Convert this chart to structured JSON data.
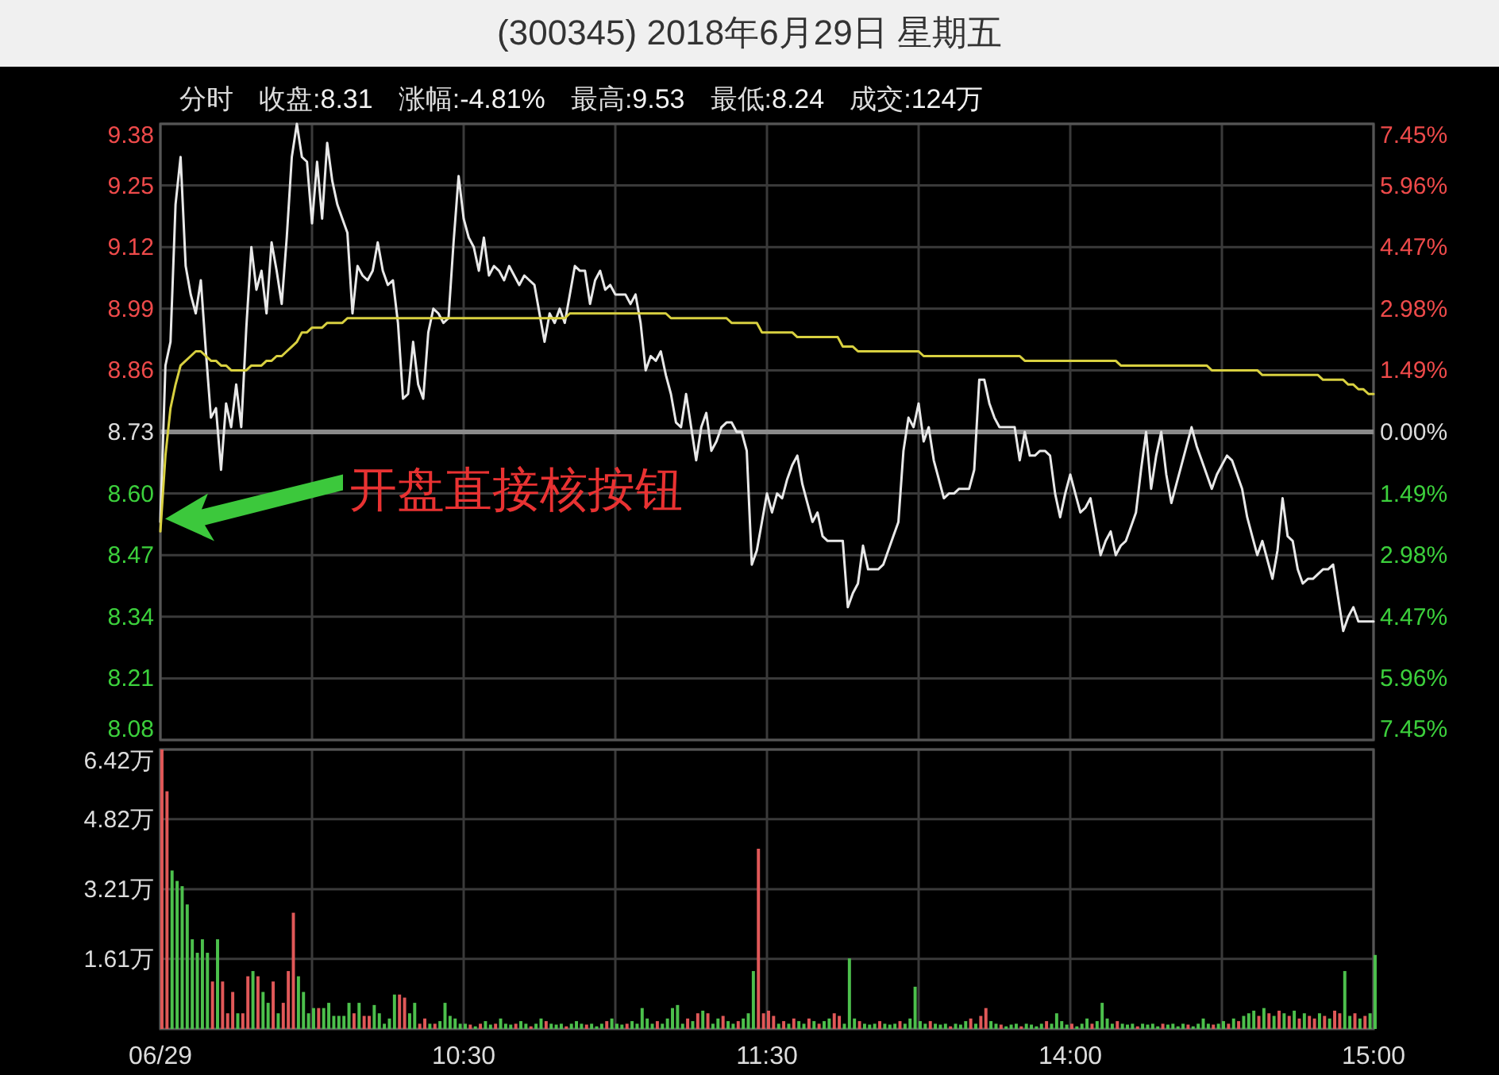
{
  "chart_data": [
    {
      "type": "line",
      "title": "(300345) 2018年6月29日 星期五",
      "annotations": [
        "分时",
        "收盘:8.31",
        "涨幅:-4.81%",
        "最高:9.53",
        "最低:8.24",
        "成交:124万",
        "开盘直接核按钮"
      ],
      "series": [
        {
          "color": "#e8e8e8",
          "values": [
            8.54,
            8.87,
            8.92,
            9.21,
            9.31,
            9.08,
            9.02,
            8.98,
            9.05,
            8.9,
            8.76,
            8.78,
            8.65,
            8.79,
            8.74,
            8.83,
            8.74,
            8.95,
            9.12,
            9.03,
            9.07,
            8.98,
            9.13,
            9.07,
            9.0,
            9.14,
            9.31,
            9.38,
            9.31,
            9.3,
            9.17,
            9.3,
            9.18,
            9.34,
            9.26,
            9.21,
            9.18,
            9.15,
            8.98,
            9.08,
            9.06,
            9.05,
            9.07,
            9.13,
            9.07,
            9.04,
            9.05,
            8.96,
            8.8,
            8.81,
            8.92,
            8.83,
            8.8,
            8.94,
            8.99,
            8.98,
            8.96,
            8.97,
            9.13,
            9.27,
            9.18,
            9.14,
            9.12,
            9.07,
            9.14,
            9.06,
            9.08,
            9.07,
            9.05,
            9.08,
            9.06,
            9.04,
            9.06,
            9.05,
            9.04,
            8.98,
            8.92,
            8.98,
            8.96,
            8.99,
            8.96,
            9.02,
            9.08,
            9.07,
            9.07,
            9.0,
            9.05,
            9.07,
            9.03,
            9.04,
            9.02,
            9.02,
            9.02,
            9.0,
            9.02,
            8.96,
            8.86,
            8.89,
            8.88,
            8.9,
            8.85,
            8.81,
            8.75,
            8.74,
            8.81,
            8.74,
            8.67,
            8.74,
            8.77,
            8.69,
            8.71,
            8.74,
            8.75,
            8.75,
            8.73,
            8.73,
            8.69,
            8.45,
            8.48,
            8.54,
            8.6,
            8.56,
            8.6,
            8.59,
            8.63,
            8.66,
            8.68,
            8.62,
            8.58,
            8.54,
            8.56,
            8.51,
            8.5,
            8.5,
            8.5,
            8.5,
            8.36,
            8.39,
            8.41,
            8.49,
            8.44,
            8.44,
            8.44,
            8.45,
            8.48,
            8.51,
            8.54,
            8.69,
            8.76,
            8.74,
            8.79,
            8.71,
            8.74,
            8.67,
            8.63,
            8.59,
            8.6,
            8.6,
            8.61,
            8.61,
            8.61,
            8.65,
            8.84,
            8.84,
            8.79,
            8.76,
            8.74,
            8.74,
            8.74,
            8.74,
            8.67,
            8.73,
            8.68,
            8.68,
            8.69,
            8.69,
            8.68,
            8.6,
            8.55,
            8.6,
            8.64,
            8.6,
            8.56,
            8.57,
            8.59,
            8.53,
            8.47,
            8.5,
            8.52,
            8.47,
            8.49,
            8.5,
            8.53,
            8.56,
            8.65,
            8.73,
            8.61,
            8.68,
            8.73,
            8.64,
            8.58,
            8.62,
            8.66,
            8.7,
            8.74,
            8.7,
            8.67,
            8.64,
            8.61,
            8.64,
            8.66,
            8.68,
            8.67,
            8.64,
            8.61,
            8.55,
            8.51,
            8.47,
            8.5,
            8.46,
            8.42,
            8.48,
            8.59,
            8.51,
            8.5,
            8.44,
            8.41,
            8.42,
            8.42,
            8.43,
            8.44,
            8.44,
            8.45,
            8.38,
            8.31,
            8.34,
            8.36,
            8.33,
            8.33,
            8.33,
            8.33
          ]
        },
        {
          "color": "#d8d040",
          "values": [
            8.52,
            8.68,
            8.78,
            8.83,
            8.87,
            8.88,
            8.89,
            8.9,
            8.9,
            8.89,
            8.88,
            8.88,
            8.87,
            8.87,
            8.86,
            8.86,
            8.86,
            8.86,
            8.87,
            8.87,
            8.87,
            8.88,
            8.88,
            8.89,
            8.89,
            8.9,
            8.91,
            8.92,
            8.94,
            8.94,
            8.95,
            8.95,
            8.95,
            8.96,
            8.96,
            8.96,
            8.96,
            8.97,
            8.97,
            8.97,
            8.97,
            8.97,
            8.97,
            8.97,
            8.97,
            8.97,
            8.97,
            8.97,
            8.97,
            8.97,
            8.97,
            8.97,
            8.97,
            8.97,
            8.97,
            8.97,
            8.97,
            8.97,
            8.97,
            8.97,
            8.97,
            8.97,
            8.97,
            8.97,
            8.97,
            8.97,
            8.97,
            8.97,
            8.97,
            8.97,
            8.97,
            8.97,
            8.97,
            8.97,
            8.97,
            8.97,
            8.97,
            8.97,
            8.97,
            8.97,
            8.97,
            8.98,
            8.98,
            8.98,
            8.98,
            8.98,
            8.98,
            8.98,
            8.98,
            8.98,
            8.98,
            8.98,
            8.98,
            8.98,
            8.98,
            8.98,
            8.98,
            8.98,
            8.98,
            8.98,
            8.98,
            8.97,
            8.97,
            8.97,
            8.97,
            8.97,
            8.97,
            8.97,
            8.97,
            8.97,
            8.97,
            8.97,
            8.97,
            8.96,
            8.96,
            8.96,
            8.96,
            8.96,
            8.96,
            8.94,
            8.94,
            8.94,
            8.94,
            8.94,
            8.94,
            8.94,
            8.93,
            8.93,
            8.93,
            8.93,
            8.93,
            8.93,
            8.93,
            8.93,
            8.93,
            8.91,
            8.91,
            8.91,
            8.9,
            8.9,
            8.9,
            8.9,
            8.9,
            8.9,
            8.9,
            8.9,
            8.9,
            8.9,
            8.9,
            8.9,
            8.9,
            8.89,
            8.89,
            8.89,
            8.89,
            8.89,
            8.89,
            8.89,
            8.89,
            8.89,
            8.89,
            8.89,
            8.89,
            8.89,
            8.89,
            8.89,
            8.89,
            8.89,
            8.89,
            8.89,
            8.89,
            8.88,
            8.88,
            8.88,
            8.88,
            8.88,
            8.88,
            8.88,
            8.88,
            8.88,
            8.88,
            8.88,
            8.88,
            8.88,
            8.88,
            8.88,
            8.88,
            8.88,
            8.88,
            8.88,
            8.87,
            8.87,
            8.87,
            8.87,
            8.87,
            8.87,
            8.87,
            8.87,
            8.87,
            8.87,
            8.87,
            8.87,
            8.87,
            8.87,
            8.87,
            8.87,
            8.87,
            8.87,
            8.86,
            8.86,
            8.86,
            8.86,
            8.86,
            8.86,
            8.86,
            8.86,
            8.86,
            8.86,
            8.85,
            8.85,
            8.85,
            8.85,
            8.85,
            8.85,
            8.85,
            8.85,
            8.85,
            8.85,
            8.85,
            8.85,
            8.84,
            8.84,
            8.84,
            8.84,
            8.84,
            8.83,
            8.83,
            8.82,
            8.82,
            8.81,
            8.81
          ]
        }
      ],
      "ylim": [
        8.08,
        9.38
      ],
      "yticks": [
        {
          "value": 9.38,
          "label": "9.38"
        },
        {
          "value": 9.25,
          "label": "9.25"
        },
        {
          "value": 9.12,
          "label": "9.12"
        },
        {
          "value": 8.99,
          "label": "8.99"
        },
        {
          "value": 8.86,
          "label": "8.86"
        },
        {
          "value": 8.73,
          "label": "8.73"
        },
        {
          "value": 8.6,
          "label": "8.60"
        },
        {
          "value": 8.47,
          "label": "8.47"
        },
        {
          "value": 8.34,
          "label": "8.34"
        },
        {
          "value": 8.21,
          "label": "8.21"
        },
        {
          "value": 8.08,
          "label": "8.08"
        }
      ],
      "y2lim": [
        -7.45,
        7.45
      ],
      "y2ticks": [
        {
          "value": 7.45,
          "label": "7.45%"
        },
        {
          "value": 5.96,
          "label": "5.96%"
        },
        {
          "value": 4.47,
          "label": "4.47%"
        },
        {
          "value": 2.98,
          "label": "2.98%"
        },
        {
          "value": 1.49,
          "label": "1.49%"
        },
        {
          "value": 0,
          "label": "0.00%"
        },
        {
          "value": -1.49,
          "label": "1.49%"
        },
        {
          "value": -2.98,
          "label": "2.98%"
        },
        {
          "value": -4.47,
          "label": "4.47%"
        },
        {
          "value": -5.96,
          "label": "5.96%"
        },
        {
          "value": -7.45,
          "label": "7.45%"
        }
      ],
      "ref_lines": [
        {
          "axis": "y",
          "value": 8.73,
          "color": "#8a8a8a"
        }
      ],
      "grid": true,
      "tick_labels": "y"
    },
    {
      "type": "bar",
      "categories": [
        "06/29",
        null,
        null,
        null,
        null,
        null,
        null,
        null,
        null,
        null,
        null,
        null,
        null,
        null,
        null,
        null,
        null,
        null,
        null,
        null,
        null,
        null,
        null,
        null,
        null,
        null,
        null,
        null,
        null,
        null,
        null,
        null,
        null,
        null,
        null,
        null,
        null,
        null,
        null,
        null,
        null,
        null,
        null,
        null,
        null,
        null,
        null,
        null,
        null,
        null,
        null,
        null,
        null,
        null,
        null,
        null,
        null,
        null,
        null,
        null,
        "10:30",
        null,
        null,
        null,
        null,
        null,
        null,
        null,
        null,
        null,
        null,
        null,
        null,
        null,
        null,
        null,
        null,
        null,
        null,
        null,
        null,
        null,
        null,
        null,
        null,
        null,
        null,
        null,
        null,
        null,
        null,
        null,
        null,
        null,
        null,
        null,
        null,
        null,
        null,
        null,
        null,
        null,
        null,
        null,
        null,
        null,
        null,
        null,
        null,
        null,
        null,
        null,
        null,
        null,
        null,
        null,
        null,
        null,
        null,
        null,
        "11:30",
        null,
        null,
        null,
        null,
        null,
        null,
        null,
        null,
        null,
        null,
        null,
        null,
        null,
        null,
        null,
        null,
        null,
        null,
        null,
        null,
        null,
        null,
        null,
        null,
        null,
        null,
        null,
        null,
        null,
        null,
        null,
        null,
        null,
        null,
        null,
        null,
        null,
        null,
        null,
        null,
        null,
        null,
        null,
        null,
        null,
        null,
        null,
        null,
        null,
        null,
        null,
        null,
        null,
        null,
        null,
        null,
        null,
        null,
        null,
        "14:00",
        null,
        null,
        null,
        null,
        null,
        null,
        null,
        null,
        null,
        null,
        null,
        null,
        null,
        null,
        null,
        null,
        null,
        null,
        null,
        null,
        null,
        null,
        null,
        null,
        null,
        null,
        null,
        null,
        null,
        null,
        null,
        null,
        null,
        null,
        null,
        null,
        null,
        null,
        null,
        null,
        null,
        null,
        null,
        null,
        null,
        null,
        null,
        null,
        null,
        null,
        null,
        null,
        null,
        null,
        null,
        null,
        null,
        null,
        null,
        "15:00"
      ],
      "values": [
        6.42,
        5.46,
        3.64,
        3.4,
        3.28,
        2.86,
        2.06,
        1.75,
        2.06,
        1.75,
        1.09,
        2.06,
        1.09,
        0.36,
        0.85,
        0.36,
        0.36,
        1.21,
        1.33,
        1.21,
        0.85,
        0.6,
        1.09,
        0.36,
        0.6,
        1.33,
        2.67,
        1.21,
        0.85,
        0.36,
        0.48,
        0.48,
        0.48,
        0.6,
        0.3,
        0.3,
        0.3,
        0.6,
        0.36,
        0.6,
        0.3,
        0.3,
        0.55,
        0.36,
        0.12,
        0.24,
        0.79,
        0.79,
        0.72,
        0.36,
        0.6,
        0.12,
        0.24,
        0.12,
        0.12,
        0.18,
        0.6,
        0.3,
        0.24,
        0.12,
        0.12,
        0.1,
        0.06,
        0.12,
        0.18,
        0.1,
        0.12,
        0.24,
        0.12,
        0.1,
        0.12,
        0.18,
        0.12,
        0.06,
        0.12,
        0.24,
        0.18,
        0.12,
        0.1,
        0.12,
        0.06,
        0.12,
        0.18,
        0.12,
        0.1,
        0.12,
        0.06,
        0.12,
        0.18,
        0.24,
        0.12,
        0.1,
        0.12,
        0.18,
        0.12,
        0.48,
        0.24,
        0.12,
        0.18,
        0.12,
        0.24,
        0.48,
        0.55,
        0.12,
        0.24,
        0.18,
        0.36,
        0.42,
        0.36,
        0.12,
        0.24,
        0.3,
        0.18,
        0.12,
        0.18,
        0.24,
        0.36,
        1.33,
        4.14,
        0.36,
        0.42,
        0.3,
        0.12,
        0.18,
        0.12,
        0.24,
        0.18,
        0.12,
        0.24,
        0.18,
        0.12,
        0.18,
        0.24,
        0.36,
        0.3,
        0.12,
        1.62,
        0.24,
        0.18,
        0.12,
        0.1,
        0.12,
        0.18,
        0.12,
        0.1,
        0.12,
        0.18,
        0.12,
        0.24,
        0.97,
        0.18,
        0.12,
        0.18,
        0.12,
        0.1,
        0.12,
        0.06,
        0.12,
        0.1,
        0.18,
        0.24,
        0.12,
        0.3,
        0.48,
        0.18,
        0.12,
        0.1,
        0.06,
        0.1,
        0.12,
        0.06,
        0.12,
        0.1,
        0.06,
        0.12,
        0.18,
        0.12,
        0.36,
        0.18,
        0.1,
        0.12,
        0.06,
        0.12,
        0.24,
        0.12,
        0.18,
        0.6,
        0.24,
        0.12,
        0.18,
        0.12,
        0.1,
        0.12,
        0.06,
        0.12,
        0.1,
        0.12,
        0.06,
        0.12,
        0.1,
        0.12,
        0.06,
        0.12,
        0.1,
        0.06,
        0.12,
        0.24,
        0.12,
        0.1,
        0.12,
        0.18,
        0.12,
        0.24,
        0.18,
        0.3,
        0.36,
        0.42,
        0.3,
        0.48,
        0.36,
        0.3,
        0.42,
        0.36,
        0.3,
        0.42,
        0.24,
        0.36,
        0.3,
        0.24,
        0.36,
        0.3,
        0.24,
        0.42,
        0.36,
        1.33,
        0.3,
        0.36,
        0.24,
        0.3,
        0.36,
        1.7
      ],
      "colors": [
        "#e05858",
        "#e05858",
        "#4cc04c",
        "#4cc04c",
        "#4cc04c",
        "#4cc04c",
        "#4cc04c",
        "#4cc04c",
        "#4cc04c",
        "#4cc04c",
        "#e05858",
        "#4cc04c",
        "#e05858",
        "#e05858",
        "#e05858",
        "#4cc04c",
        "#e05858",
        "#e05858",
        "#4cc04c",
        "#e05858",
        "#4cc04c",
        "#4cc04c",
        "#e05858",
        "#4cc04c",
        "#e05858",
        "#e05858",
        "#e05858",
        "#4cc04c",
        "#4cc04c",
        "#4cc04c",
        "#4cc04c",
        "#e05858",
        "#4cc04c",
        "#4cc04c",
        "#4cc04c",
        "#4cc04c",
        "#4cc04c",
        "#4cc04c",
        "#e05858",
        "#4cc04c",
        "#e05858",
        "#e05858",
        "#4cc04c",
        "#4cc04c",
        "#4cc04c",
        "#4cc04c",
        "#4cc04c",
        "#e05858",
        "#e05858",
        "#4cc04c",
        "#4cc04c",
        "#e05858",
        "#e05858",
        "#4cc04c",
        "#e05858",
        "#4cc04c",
        "#4cc04c",
        "#4cc04c",
        "#4cc04c",
        "#4cc04c",
        "#4cc04c",
        "#e05858",
        "#4cc04c",
        "#e05858",
        "#4cc04c",
        "#4cc04c",
        "#e05858",
        "#4cc04c",
        "#4cc04c",
        "#4cc04c",
        "#e05858",
        "#4cc04c",
        "#4cc04c",
        "#e05858",
        "#4cc04c",
        "#4cc04c",
        "#e05858",
        "#4cc04c",
        "#4cc04c",
        "#4cc04c",
        "#e05858",
        "#4cc04c",
        "#4cc04c",
        "#4cc04c",
        "#e05858",
        "#4cc04c",
        "#4cc04c",
        "#4cc04c",
        "#e05858",
        "#4cc04c",
        "#4cc04c",
        "#4cc04c",
        "#e05858",
        "#4cc04c",
        "#4cc04c",
        "#4cc04c",
        "#4cc04c",
        "#4cc04c",
        "#e05858",
        "#4cc04c",
        "#4cc04c",
        "#4cc04c",
        "#4cc04c",
        "#4cc04c",
        "#e05858",
        "#4cc04c",
        "#e05858",
        "#4cc04c",
        "#e05858",
        "#4cc04c",
        "#4cc04c",
        "#e05858",
        "#4cc04c",
        "#4cc04c",
        "#e05858",
        "#4cc04c",
        "#4cc04c",
        "#4cc04c",
        "#e05858",
        "#e05858",
        "#e05858",
        "#e05858",
        "#4cc04c",
        "#e05858",
        "#4cc04c",
        "#e05858",
        "#4cc04c",
        "#4cc04c",
        "#e05858",
        "#4cc04c",
        "#e05858",
        "#4cc04c",
        "#4cc04c",
        "#e05858",
        "#e05858",
        "#4cc04c",
        "#4cc04c",
        "#4cc04c",
        "#e05858",
        "#4cc04c",
        "#4cc04c",
        "#4cc04c",
        "#e05858",
        "#4cc04c",
        "#4cc04c",
        "#4cc04c",
        "#e05858",
        "#4cc04c",
        "#4cc04c",
        "#4cc04c",
        "#4cc04c",
        "#4cc04c",
        "#e05858",
        "#4cc04c",
        "#4cc04c",
        "#4cc04c",
        "#e05858",
        "#4cc04c",
        "#4cc04c",
        "#4cc04c",
        "#e05858",
        "#4cc04c",
        "#e05858",
        "#e05858",
        "#4cc04c",
        "#4cc04c",
        "#e05858",
        "#4cc04c",
        "#4cc04c",
        "#4cc04c",
        "#e05858",
        "#4cc04c",
        "#4cc04c",
        "#4cc04c",
        "#4cc04c",
        "#e05858",
        "#4cc04c",
        "#4cc04c",
        "#4cc04c",
        "#4cc04c",
        "#e05858",
        "#4cc04c",
        "#4cc04c",
        "#4cc04c",
        "#e05858",
        "#4cc04c",
        "#4cc04c",
        "#4cc04c",
        "#4cc04c",
        "#e05858",
        "#4cc04c",
        "#4cc04c",
        "#4cc04c",
        "#e05858",
        "#4cc04c",
        "#4cc04c",
        "#4cc04c",
        "#4cc04c",
        "#e05858",
        "#4cc04c",
        "#4cc04c",
        "#4cc04c",
        "#4cc04c",
        "#e05858",
        "#4cc04c",
        "#4cc04c",
        "#4cc04c",
        "#4cc04c",
        "#e05858",
        "#4cc04c",
        "#4cc04c",
        "#e05858",
        "#4cc04c",
        "#e05858",
        "#4cc04c",
        "#4cc04c",
        "#4cc04c",
        "#e05858",
        "#4cc04c",
        "#e05858",
        "#4cc04c",
        "#e05858",
        "#4cc04c",
        "#e05858",
        "#4cc04c",
        "#e05858",
        "#4cc04c",
        "#e05858",
        "#e05858",
        "#4cc04c",
        "#e05858",
        "#4cc04c",
        "#e05858",
        "#e05858",
        "#4cc04c",
        "#4cc04c",
        "#e05858",
        "#4cc04c",
        "#e05858",
        "#4cc04c",
        "#4cc04c"
      ],
      "ylim": [
        0,
        6.42
      ],
      "yticks": [
        {
          "value": 1.61,
          "label": "1.61万"
        },
        {
          "value": 3.21,
          "label": "3.21万"
        },
        {
          "value": 4.82,
          "label": "4.82万"
        },
        {
          "value": 6.42,
          "label": "6.42万"
        }
      ],
      "grid": true
    }
  ]
}
